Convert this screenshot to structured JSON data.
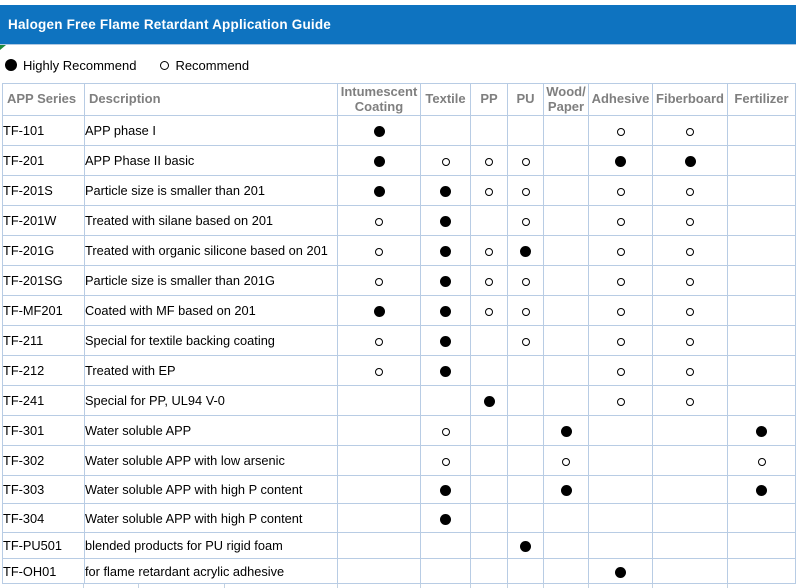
{
  "title": "Halogen Free Flame Retardant Application Guide",
  "legend": {
    "highly": {
      "label": "Highly Recommend",
      "marker": "filled-circle"
    },
    "recommend": {
      "label": "Recommend",
      "marker": "hollow-circle"
    }
  },
  "colors": {
    "title_bar": "#0e73c0",
    "title_text": "#ffffff",
    "header_text": "#7f7f7f",
    "grid_border": "#b8cce4",
    "marker": "#000000",
    "corner_flag": "#1f8a3c"
  },
  "table": {
    "columns": [
      {
        "key": "series",
        "label": "APP Series",
        "type": "text"
      },
      {
        "key": "description",
        "label": "Description",
        "type": "text"
      },
      {
        "key": "intumescent",
        "label": "Intumescent\nCoating",
        "type": "mark"
      },
      {
        "key": "textile",
        "label": "Textile",
        "type": "mark"
      },
      {
        "key": "pp",
        "label": "PP",
        "type": "mark"
      },
      {
        "key": "pu",
        "label": "PU",
        "type": "mark"
      },
      {
        "key": "wood_paper",
        "label": "Wood/\nPaper",
        "type": "mark"
      },
      {
        "key": "adhesive",
        "label": "Adhesive",
        "type": "mark"
      },
      {
        "key": "fiberboard",
        "label": "Fiberboard",
        "type": "mark"
      },
      {
        "key": "fertilizer",
        "label": "Fertilizer",
        "type": "mark"
      }
    ],
    "mark_legend": {
      "highly": "Highly Recommend",
      "recommend": "Recommend"
    },
    "rows": [
      {
        "series": "TF-101",
        "description": "APP phase I",
        "marks": {
          "intumescent": "highly",
          "adhesive": "recommend",
          "fiberboard": "recommend"
        }
      },
      {
        "series": "TF-201",
        "description": "APP Phase II basic",
        "marks": {
          "intumescent": "highly",
          "textile": "recommend",
          "pp": "recommend",
          "pu": "recommend",
          "adhesive": "highly",
          "fiberboard": "highly"
        }
      },
      {
        "series": "TF-201S",
        "description": "Particle size is smaller than 201",
        "marks": {
          "intumescent": "highly",
          "textile": "highly",
          "pp": "recommend",
          "pu": "recommend",
          "adhesive": "recommend",
          "fiberboard": "recommend"
        }
      },
      {
        "series": "TF-201W",
        "description": "Treated with silane based on 201",
        "marks": {
          "intumescent": "recommend",
          "textile": "highly",
          "pu": "recommend",
          "adhesive": "recommend",
          "fiberboard": "recommend"
        }
      },
      {
        "series": "TF-201G",
        "description": "Treated with organic silicone based on 201",
        "marks": {
          "intumescent": "recommend",
          "textile": "highly",
          "pp": "recommend",
          "pu": "highly",
          "adhesive": "recommend",
          "fiberboard": "recommend"
        }
      },
      {
        "series": "TF-201SG",
        "description": "Particle size is smaller than 201G",
        "marks": {
          "intumescent": "recommend",
          "textile": "highly",
          "pp": "recommend",
          "pu": "recommend",
          "adhesive": "recommend",
          "fiberboard": "recommend"
        }
      },
      {
        "series": "TF-MF201",
        "description": "Coated with MF based on 201",
        "marks": {
          "intumescent": "highly",
          "textile": "highly",
          "pp": "recommend",
          "pu": "recommend",
          "adhesive": "recommend",
          "fiberboard": "recommend"
        }
      },
      {
        "series": "TF-211",
        "description": "Special for textile backing coating",
        "marks": {
          "intumescent": "recommend",
          "textile": "highly",
          "pu": "recommend",
          "adhesive": "recommend",
          "fiberboard": "recommend"
        }
      },
      {
        "series": "TF-212",
        "description": "Treated with EP",
        "marks": {
          "intumescent": "recommend",
          "textile": "highly",
          "adhesive": "recommend",
          "fiberboard": "recommend"
        }
      },
      {
        "series": "TF-241",
        "description": "Special for PP, UL94 V-0",
        "marks": {
          "pp": "highly",
          "adhesive": "recommend",
          "fiberboard": "recommend"
        }
      },
      {
        "series": "TF-301",
        "description": "Water soluble APP",
        "marks": {
          "textile": "recommend",
          "wood_paper": "highly",
          "fertilizer": "highly"
        }
      },
      {
        "series": "TF-302",
        "description": "Water soluble APP with low arsenic",
        "marks": {
          "textile": "recommend",
          "wood_paper": "recommend",
          "fertilizer": "recommend"
        }
      },
      {
        "series": "TF-303",
        "description": "Water soluble APP with high P content",
        "marks": {
          "textile": "highly",
          "wood_paper": "highly",
          "fertilizer": "highly"
        }
      },
      {
        "series": "TF-304",
        "description": "Water soluble APP with high P content",
        "marks": {
          "textile": "highly"
        }
      },
      {
        "series": "TF-PU501",
        "description": "blended products for PU rigid foam",
        "marks": {
          "pu": "highly"
        }
      },
      {
        "series": "TF-OH01",
        "description": "for flame retardant acrylic adhesive",
        "marks": {
          "adhesive": "highly"
        }
      }
    ]
  }
}
